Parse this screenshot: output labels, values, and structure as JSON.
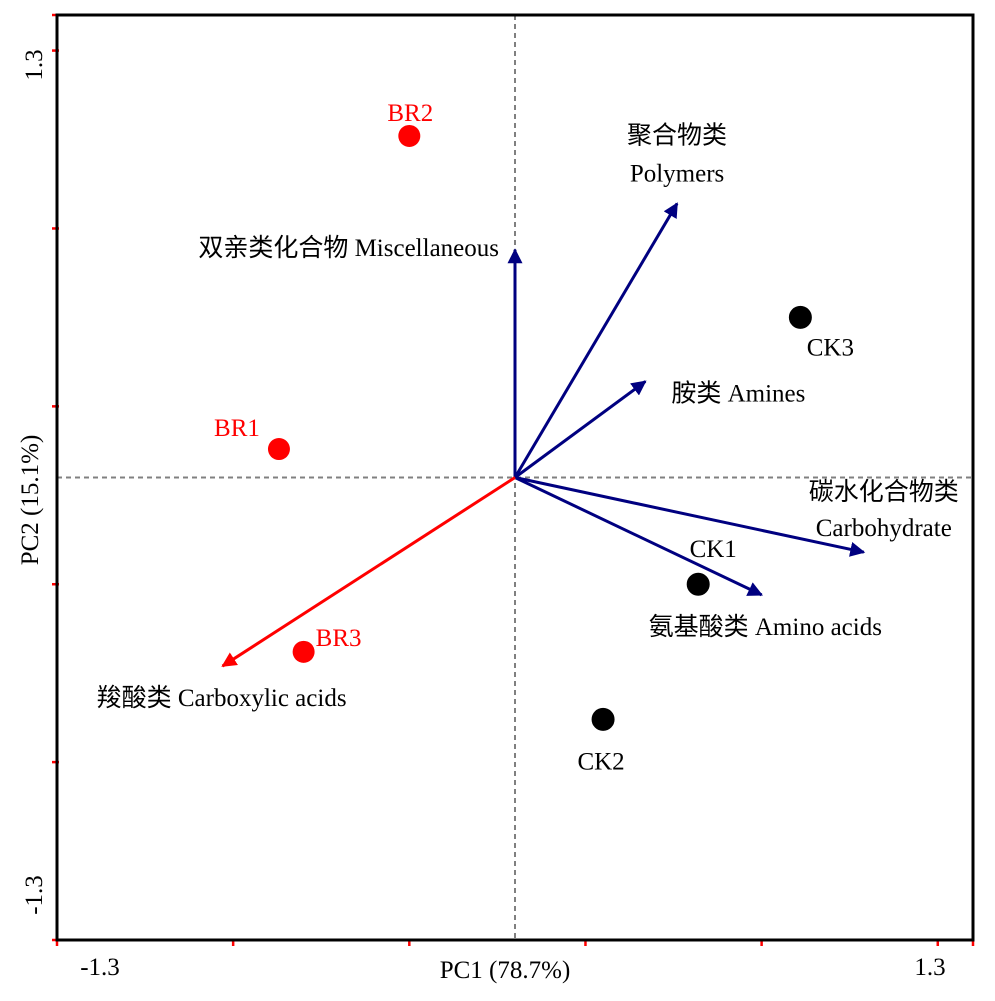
{
  "chart_data": {
    "type": "biplot",
    "xlabel": "PC1 (78.7%)",
    "ylabel": "PC2 (15.1%)",
    "xlim": [
      -1.3,
      1.3
    ],
    "ylim": [
      -1.3,
      1.3
    ],
    "x_tick_labels": [
      {
        "value": -1.3,
        "label": "-1.3"
      },
      {
        "value": 1.3,
        "label": "1.3"
      }
    ],
    "y_tick_labels": [
      {
        "value": 1.3,
        "label": "1.3"
      },
      {
        "value": -1.3,
        "label": "-1.3"
      }
    ],
    "grid": false,
    "zero_lines": true,
    "colors": {
      "treatment": "#ff0000",
      "control": "#000000",
      "loading": "#000080",
      "loading_highlight": "#ff0000"
    },
    "samples": [
      {
        "name": "BR1",
        "group": "treatment",
        "x": -0.67,
        "y": 0.08
      },
      {
        "name": "BR2",
        "group": "treatment",
        "x": -0.3,
        "y": 0.96
      },
      {
        "name": "BR3",
        "group": "treatment",
        "x": -0.6,
        "y": -0.49
      },
      {
        "name": "CK1",
        "group": "control",
        "x": 0.52,
        "y": -0.3
      },
      {
        "name": "CK2",
        "group": "control",
        "x": 0.25,
        "y": -0.68
      },
      {
        "name": "CK3",
        "group": "control",
        "x": 0.81,
        "y": 0.45
      }
    ],
    "loadings": [
      {
        "name_cn": "聚合物类",
        "name_en": "Polymers",
        "x": 0.46,
        "y": 0.77,
        "highlight": false
      },
      {
        "name_cn": "双亲类化合物",
        "name_en": "Miscellaneous",
        "x": 0.0,
        "y": 0.64,
        "highlight": false
      },
      {
        "name_cn": "胺类",
        "name_en": "Amines",
        "x": 0.37,
        "y": 0.27,
        "highlight": false
      },
      {
        "name_cn": "碳水化合物类",
        "name_en": "Carbohydrate",
        "x": 0.99,
        "y": -0.21,
        "highlight": false
      },
      {
        "name_cn": "氨基酸类",
        "name_en": "Amino acids",
        "x": 0.7,
        "y": -0.33,
        "highlight": false
      },
      {
        "name_cn": "羧酸类",
        "name_en": "Carboxylic acids",
        "x": -0.83,
        "y": -0.53,
        "highlight": true
      }
    ]
  }
}
